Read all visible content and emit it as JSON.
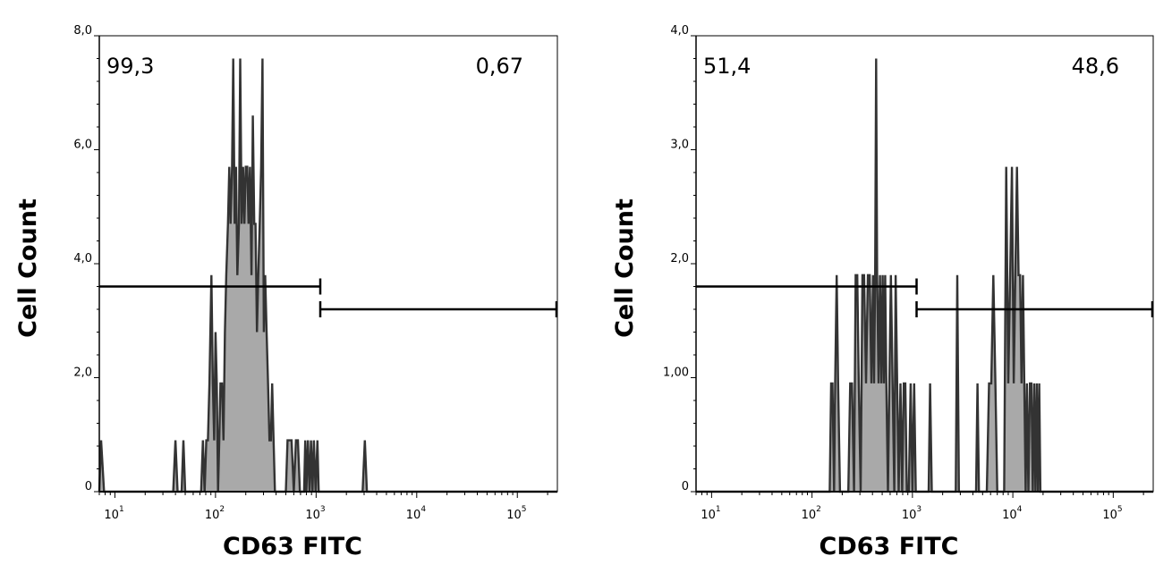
{
  "chart_data": [
    {
      "type": "area",
      "xlabel": "CD63 FITC",
      "ylabel": "Cell Count",
      "x_scale": "log",
      "xlim": [
        7,
        250000
      ],
      "ylim": [
        0,
        8
      ],
      "x_ticks": [
        {
          "base": "10",
          "exp": "1"
        },
        {
          "base": "10",
          "exp": "2"
        },
        {
          "base": "10",
          "exp": "3"
        },
        {
          "base": "10",
          "exp": "4"
        },
        {
          "base": "10",
          "exp": "5"
        }
      ],
      "y_ticks": [
        {
          "v": 0,
          "label": "0"
        },
        {
          "v": 2,
          "label": "2,0"
        },
        {
          "v": 4,
          "label": "4,0"
        },
        {
          "v": 6,
          "label": "6,0"
        },
        {
          "v": 8,
          "label": "8,0"
        }
      ],
      "gates": [
        {
          "x_start": 7,
          "x_end": 1100,
          "y": 3.6,
          "percent": "99,3"
        },
        {
          "x_start": 1100,
          "x_end": 250000,
          "y": 3.2,
          "percent": "0,67"
        }
      ],
      "points": [
        [
          7,
          0
        ],
        [
          7.3,
          0.9
        ],
        [
          7.8,
          0
        ],
        [
          38,
          0
        ],
        [
          40,
          0.9
        ],
        [
          42,
          0
        ],
        [
          46,
          0
        ],
        [
          48,
          0.9
        ],
        [
          50,
          0
        ],
        [
          72,
          0
        ],
        [
          75,
          0.9
        ],
        [
          78,
          0
        ],
        [
          81,
          0.9
        ],
        [
          84,
          0.9
        ],
        [
          87,
          1.9
        ],
        [
          91,
          3.8
        ],
        [
          94,
          1.9
        ],
        [
          97,
          0.9
        ],
        [
          100,
          2.8
        ],
        [
          103,
          1.9
        ],
        [
          106,
          0
        ],
        [
          109,
          0.9
        ],
        [
          112,
          1.9
        ],
        [
          116,
          1.9
        ],
        [
          120,
          0.9
        ],
        [
          124,
          2.8
        ],
        [
          128,
          3.8
        ],
        [
          133,
          4.7
        ],
        [
          137,
          5.7
        ],
        [
          141,
          4.7
        ],
        [
          146,
          5.7
        ],
        [
          150,
          7.6
        ],
        [
          155,
          4.7
        ],
        [
          160,
          5.7
        ],
        [
          165,
          3.8
        ],
        [
          171,
          4.7
        ],
        [
          176,
          7.6
        ],
        [
          182,
          4.7
        ],
        [
          188,
          5.7
        ],
        [
          194,
          4.7
        ],
        [
          200,
          5.7
        ],
        [
          207,
          5.7
        ],
        [
          213,
          4.7
        ],
        [
          220,
          5.7
        ],
        [
          228,
          3.8
        ],
        [
          235,
          6.6
        ],
        [
          243,
          4.7
        ],
        [
          250,
          4.7
        ],
        [
          258,
          2.8
        ],
        [
          266,
          3.8
        ],
        [
          275,
          4.7
        ],
        [
          284,
          5.7
        ],
        [
          293,
          7.6
        ],
        [
          302,
          2.8
        ],
        [
          312,
          3.8
        ],
        [
          322,
          2.8
        ],
        [
          333,
          1.9
        ],
        [
          344,
          0.9
        ],
        [
          355,
          0.9
        ],
        [
          366,
          1.9
        ],
        [
          378,
          0.9
        ],
        [
          390,
          0
        ],
        [
          500,
          0
        ],
        [
          520,
          0.9
        ],
        [
          545,
          0.9
        ],
        [
          570,
          0.9
        ],
        [
          600,
          0
        ],
        [
          630,
          0.9
        ],
        [
          660,
          0.9
        ],
        [
          690,
          0
        ],
        [
          760,
          0
        ],
        [
          780,
          0.9
        ],
        [
          800,
          0
        ],
        [
          830,
          0.9
        ],
        [
          860,
          0
        ],
        [
          890,
          0.9
        ],
        [
          920,
          0
        ],
        [
          950,
          0.9
        ],
        [
          990,
          0
        ],
        [
          1030,
          0.9
        ],
        [
          1060,
          0
        ],
        [
          2900,
          0
        ],
        [
          3050,
          0.9
        ],
        [
          3200,
          0
        ],
        [
          250000,
          0
        ]
      ]
    },
    {
      "type": "area",
      "xlabel": "CD63 FITC",
      "ylabel": "Cell Count",
      "x_scale": "log",
      "xlim": [
        7,
        250000
      ],
      "ylim": [
        0,
        4
      ],
      "x_ticks": [
        {
          "base": "10",
          "exp": "1"
        },
        {
          "base": "10",
          "exp": "2"
        },
        {
          "base": "10",
          "exp": "3"
        },
        {
          "base": "10",
          "exp": "4"
        },
        {
          "base": "10",
          "exp": "5"
        }
      ],
      "y_ticks": [
        {
          "v": 0,
          "label": "0"
        },
        {
          "v": 1,
          "label": "1,00"
        },
        {
          "v": 2,
          "label": "2,0"
        },
        {
          "v": 3,
          "label": "3,0"
        },
        {
          "v": 4,
          "label": "4,0"
        }
      ],
      "gates": [
        {
          "x_start": 7,
          "x_end": 1100,
          "y": 1.8,
          "percent": "51,4"
        },
        {
          "x_start": 1100,
          "x_end": 250000,
          "y": 1.6,
          "percent": "48,6"
        }
      ],
      "points": [
        [
          7,
          0
        ],
        [
          150,
          0
        ],
        [
          155,
          0.95
        ],
        [
          160,
          0.95
        ],
        [
          166,
          0
        ],
        [
          170,
          0.95
        ],
        [
          176,
          1.9
        ],
        [
          182,
          0.95
        ],
        [
          190,
          0
        ],
        [
          230,
          0
        ],
        [
          240,
          0.95
        ],
        [
          250,
          0.95
        ],
        [
          262,
          0
        ],
        [
          272,
          1.9
        ],
        [
          282,
          1.9
        ],
        [
          292,
          0.95
        ],
        [
          305,
          0
        ],
        [
          318,
          1.9
        ],
        [
          330,
          1.9
        ],
        [
          345,
          0.95
        ],
        [
          360,
          1.9
        ],
        [
          375,
          1.9
        ],
        [
          390,
          0.95
        ],
        [
          405,
          1.9
        ],
        [
          415,
          0.95
        ],
        [
          425,
          1.9
        ],
        [
          435,
          3.8
        ],
        [
          445,
          1.9
        ],
        [
          460,
          0.95
        ],
        [
          475,
          1.9
        ],
        [
          490,
          0.95
        ],
        [
          505,
          1.9
        ],
        [
          520,
          0.95
        ],
        [
          535,
          1.9
        ],
        [
          550,
          0.95
        ],
        [
          570,
          0
        ],
        [
          590,
          0.95
        ],
        [
          610,
          1.9
        ],
        [
          635,
          0.95
        ],
        [
          660,
          0
        ],
        [
          680,
          1.9
        ],
        [
          705,
          0.95
        ],
        [
          730,
          0
        ],
        [
          760,
          0.95
        ],
        [
          790,
          0
        ],
        [
          820,
          0.95
        ],
        [
          850,
          0.95
        ],
        [
          880,
          0
        ],
        [
          920,
          0
        ],
        [
          960,
          0.95
        ],
        [
          1000,
          0
        ],
        [
          1040,
          0.95
        ],
        [
          1080,
          0
        ],
        [
          1450,
          0
        ],
        [
          1500,
          0.95
        ],
        [
          1560,
          0
        ],
        [
          2700,
          0
        ],
        [
          2800,
          1.9
        ],
        [
          2900,
          0
        ],
        [
          4300,
          0
        ],
        [
          4450,
          0.95
        ],
        [
          4600,
          0
        ],
        [
          5500,
          0
        ],
        [
          5800,
          0.95
        ],
        [
          6100,
          0.95
        ],
        [
          6400,
          1.9
        ],
        [
          6700,
          0.95
        ],
        [
          7000,
          0
        ],
        [
          8200,
          0
        ],
        [
          8600,
          2.85
        ],
        [
          9000,
          0.95
        ],
        [
          9400,
          1.9
        ],
        [
          9800,
          2.85
        ],
        [
          10200,
          0.95
        ],
        [
          10600,
          1.9
        ],
        [
          11000,
          2.85
        ],
        [
          11400,
          1.9
        ],
        [
          11800,
          1.9
        ],
        [
          12200,
          0.95
        ],
        [
          12600,
          1.9
        ],
        [
          13000,
          0.95
        ],
        [
          13400,
          0
        ],
        [
          13800,
          0.95
        ],
        [
          14300,
          0
        ],
        [
          14800,
          0.95
        ],
        [
          15300,
          0.95
        ],
        [
          15800,
          0
        ],
        [
          16300,
          0.95
        ],
        [
          16800,
          0
        ],
        [
          17300,
          0.95
        ],
        [
          17800,
          0
        ],
        [
          18300,
          0.95
        ],
        [
          18800,
          0
        ],
        [
          250000,
          0
        ]
      ]
    }
  ]
}
